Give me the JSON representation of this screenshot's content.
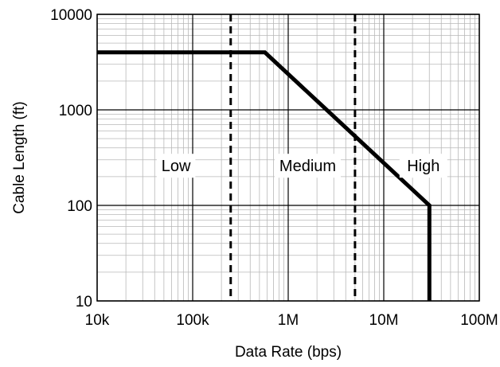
{
  "chart_data": {
    "type": "line",
    "title": "",
    "xlabel": "Data Rate (bps)",
    "ylabel": "Cable Length (ft)",
    "xscale": "log",
    "yscale": "log",
    "xlim": [
      10000,
      100000000
    ],
    "ylim": [
      10,
      10000
    ],
    "grid": true,
    "x_ticks": [
      {
        "value": 10000,
        "label": "10k"
      },
      {
        "value": 100000,
        "label": "100k"
      },
      {
        "value": 1000000,
        "label": "1M"
      },
      {
        "value": 10000000,
        "label": "10M"
      },
      {
        "value": 100000000,
        "label": "100M"
      }
    ],
    "y_ticks": [
      {
        "value": 10,
        "label": "10"
      },
      {
        "value": 100,
        "label": "100"
      },
      {
        "value": 1000,
        "label": "1000"
      },
      {
        "value": 10000,
        "label": "10000"
      }
    ],
    "series": [
      {
        "color": "#000000",
        "points": [
          {
            "x": 10000,
            "y": 4000
          },
          {
            "x": 570000,
            "y": 4000
          },
          {
            "x": 30000000,
            "y": 100
          },
          {
            "x": 30000000,
            "y": 10
          }
        ]
      }
    ],
    "dividers": [
      {
        "x": 250000,
        "style": "dashed"
      },
      {
        "x": 5000000,
        "style": "dashed"
      }
    ],
    "regions": [
      {
        "label": "Low",
        "x": 67000,
        "y": 260
      },
      {
        "label": "Medium",
        "x": 1600000,
        "y": 260
      },
      {
        "label": "High",
        "x": 26000000,
        "y": 260
      }
    ]
  }
}
